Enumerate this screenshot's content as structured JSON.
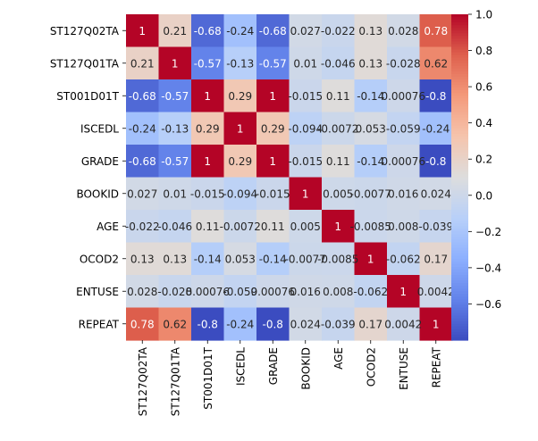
{
  "chart_data": {
    "type": "heatmap",
    "variables": [
      "ST127Q02TA",
      "ST127Q01TA",
      "ST001D01T",
      "ISCEDL",
      "GRADE",
      "BOOKID",
      "AGE",
      "OCOD2",
      "ENTUSE",
      "REPEAT"
    ],
    "values": [
      [
        1,
        0.21,
        -0.68,
        -0.24,
        -0.68,
        0.027,
        -0.022,
        0.13,
        0.028,
        0.78
      ],
      [
        0.21,
        1,
        -0.57,
        -0.13,
        -0.57,
        0.01,
        -0.046,
        0.13,
        -0.028,
        0.62
      ],
      [
        -0.68,
        -0.57,
        1,
        0.29,
        1,
        -0.015,
        0.11,
        -0.14,
        0.00076,
        -0.8
      ],
      [
        -0.24,
        -0.13,
        0.29,
        1,
        0.29,
        -0.094,
        -0.0072,
        0.053,
        -0.059,
        -0.24
      ],
      [
        -0.68,
        -0.57,
        1,
        0.29,
        1,
        -0.015,
        0.11,
        -0.14,
        0.00076,
        -0.8
      ],
      [
        0.027,
        0.01,
        -0.015,
        -0.094,
        -0.015,
        1,
        0.005,
        -0.0077,
        0.016,
        0.024
      ],
      [
        -0.022,
        -0.046,
        0.11,
        -0.0072,
        0.11,
        0.005,
        1,
        -0.0085,
        0.008,
        -0.039
      ],
      [
        0.13,
        0.13,
        -0.14,
        0.053,
        -0.14,
        -0.0077,
        -0.0085,
        1,
        -0.062,
        0.17
      ],
      [
        0.028,
        -0.028,
        0.00076,
        -0.059,
        0.00076,
        0.016,
        0.008,
        -0.062,
        1,
        0.0042
      ],
      [
        0.78,
        0.62,
        -0.8,
        -0.24,
        -0.8,
        0.024,
        -0.039,
        0.17,
        0.0042,
        1
      ]
    ],
    "cell_labels": [
      [
        "1",
        "0.21",
        "-0.68",
        "-0.24",
        "-0.68",
        "0.027",
        "-0.022",
        "0.13",
        "0.028",
        "0.78"
      ],
      [
        "0.21",
        "1",
        "-0.57",
        "-0.13",
        "-0.57",
        "0.01",
        "-0.046",
        "0.13",
        "-0.028",
        "0.62"
      ],
      [
        "-0.68",
        "-0.57",
        "1",
        "0.29",
        "1",
        "-0.015",
        "0.11",
        "-0.14",
        "0.00076",
        "-0.8"
      ],
      [
        "-0.24",
        "-0.13",
        "0.29",
        "1",
        "0.29",
        "-0.094",
        "-0.0072",
        "0.053",
        "-0.059",
        "-0.24"
      ],
      [
        "-0.68",
        "-0.57",
        "1",
        "0.29",
        "1",
        "-0.015",
        "0.11",
        "-0.14",
        "0.00076",
        "-0.8"
      ],
      [
        "0.027",
        "0.01",
        "-0.015",
        "-0.094",
        "-0.015",
        "1",
        "0.005",
        "-0.0077",
        "0.016",
        "0.024"
      ],
      [
        "-0.022",
        "-0.046",
        "0.11",
        "-0.0072",
        "0.11",
        "0.005",
        "1",
        "-0.0085",
        "0.008",
        "-0.039"
      ],
      [
        "0.13",
        "0.13",
        "-0.14",
        "0.053",
        "-0.14",
        "-0.0077",
        "-0.0085",
        "1",
        "-0.062",
        "0.17"
      ],
      [
        "0.028",
        "-0.028",
        "0.00076",
        "-0.059",
        "0.00076",
        "0.016",
        "0.008",
        "-0.062",
        "1",
        "0.0042"
      ],
      [
        "0.78",
        "0.62",
        "-0.8",
        "-0.24",
        "-0.8",
        "0.024",
        "-0.039",
        "0.17",
        "0.0042",
        "1"
      ]
    ],
    "colormap": "coolwarm",
    "colorbar": {
      "min": -0.8,
      "max": 1,
      "ticks": [
        1.0,
        0.8,
        0.6,
        0.4,
        0.2,
        0.0,
        -0.2,
        -0.4,
        -0.6
      ],
      "tick_labels": [
        "1.0",
        "0.8",
        "0.6",
        "0.4",
        "0.2",
        "0.0",
        "−0.2",
        "−0.4",
        "−0.6"
      ]
    },
    "title": "",
    "xlabel": "",
    "ylabel": ""
  }
}
